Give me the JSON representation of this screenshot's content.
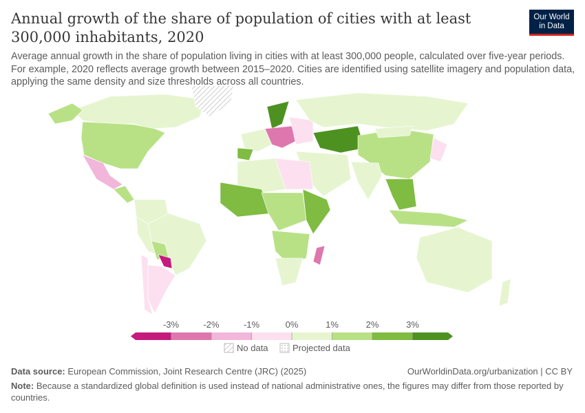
{
  "header": {
    "title": "Annual growth of the share of population of cities with at least 300,000 inhabitants, 2020",
    "subtitle": "Average annual growth in the share of population living in cities with at least 300,000 people, calculated over five-year periods. For example, 2020 reflects average growth between 2015–2020. Cities are identified using satellite imagery and population data, applying the same density and size thresholds across all countries.",
    "logo_line1": "Our World",
    "logo_line2": "in Data"
  },
  "legend": {
    "ticks": [
      "-3%",
      "-2%",
      "-1%",
      "0%",
      "1%",
      "2%",
      "3%"
    ],
    "bin_colors": [
      "#c51b7d",
      "#de77ae",
      "#f1b6da",
      "#fde0ef",
      "#e6f5d0",
      "#b8e186",
      "#7fbc41",
      "#4d9221"
    ],
    "no_data_label": "No data",
    "projected_label": "Projected data"
  },
  "map": {
    "year": "2020",
    "regions": [
      {
        "name": "canada",
        "bin": 4
      },
      {
        "name": "alaska",
        "bin": 5
      },
      {
        "name": "usa",
        "bin": 5
      },
      {
        "name": "mexico",
        "bin": 2
      },
      {
        "name": "central-america",
        "bin": 5
      },
      {
        "name": "greenland",
        "bin": -1
      },
      {
        "name": "colombia-venezuela",
        "bin": 4
      },
      {
        "name": "brazil",
        "bin": 4
      },
      {
        "name": "peru",
        "bin": 4
      },
      {
        "name": "bolivia",
        "bin": 5
      },
      {
        "name": "paraguay",
        "bin": 0
      },
      {
        "name": "argentina",
        "bin": 3
      },
      {
        "name": "chile",
        "bin": 3
      },
      {
        "name": "western-europe",
        "bin": 4
      },
      {
        "name": "spain",
        "bin": 6
      },
      {
        "name": "scandinavia",
        "bin": 7
      },
      {
        "name": "central-europe",
        "bin": 1
      },
      {
        "name": "eastern-europe",
        "bin": 3
      },
      {
        "name": "russia",
        "bin": 4
      },
      {
        "name": "kazakhstan",
        "bin": 7
      },
      {
        "name": "china",
        "bin": 5
      },
      {
        "name": "mongolia",
        "bin": 4
      },
      {
        "name": "india",
        "bin": 4
      },
      {
        "name": "middle-east",
        "bin": 4
      },
      {
        "name": "north-africa",
        "bin": 4
      },
      {
        "name": "libya-egypt",
        "bin": 3
      },
      {
        "name": "west-africa",
        "bin": 6
      },
      {
        "name": "central-africa",
        "bin": 5
      },
      {
        "name": "east-africa",
        "bin": 6
      },
      {
        "name": "southern-africa",
        "bin": 5
      },
      {
        "name": "south-africa",
        "bin": 4
      },
      {
        "name": "madagascar",
        "bin": 1
      },
      {
        "name": "southeast-asia",
        "bin": 6
      },
      {
        "name": "japan",
        "bin": 3
      },
      {
        "name": "indonesia",
        "bin": 5
      },
      {
        "name": "australia",
        "bin": 4
      },
      {
        "name": "new-zealand",
        "bin": 4
      }
    ]
  },
  "footer": {
    "source_label": "Data source:",
    "source": "European Commission, Joint Research Centre (JRC) (2025)",
    "url": "OurWorldinData.org/urbanization | CC BY",
    "note_label": "Note:",
    "note": "Because a standardized global definition is used instead of national administrative ones, the figures may differ from those reported by countries."
  }
}
